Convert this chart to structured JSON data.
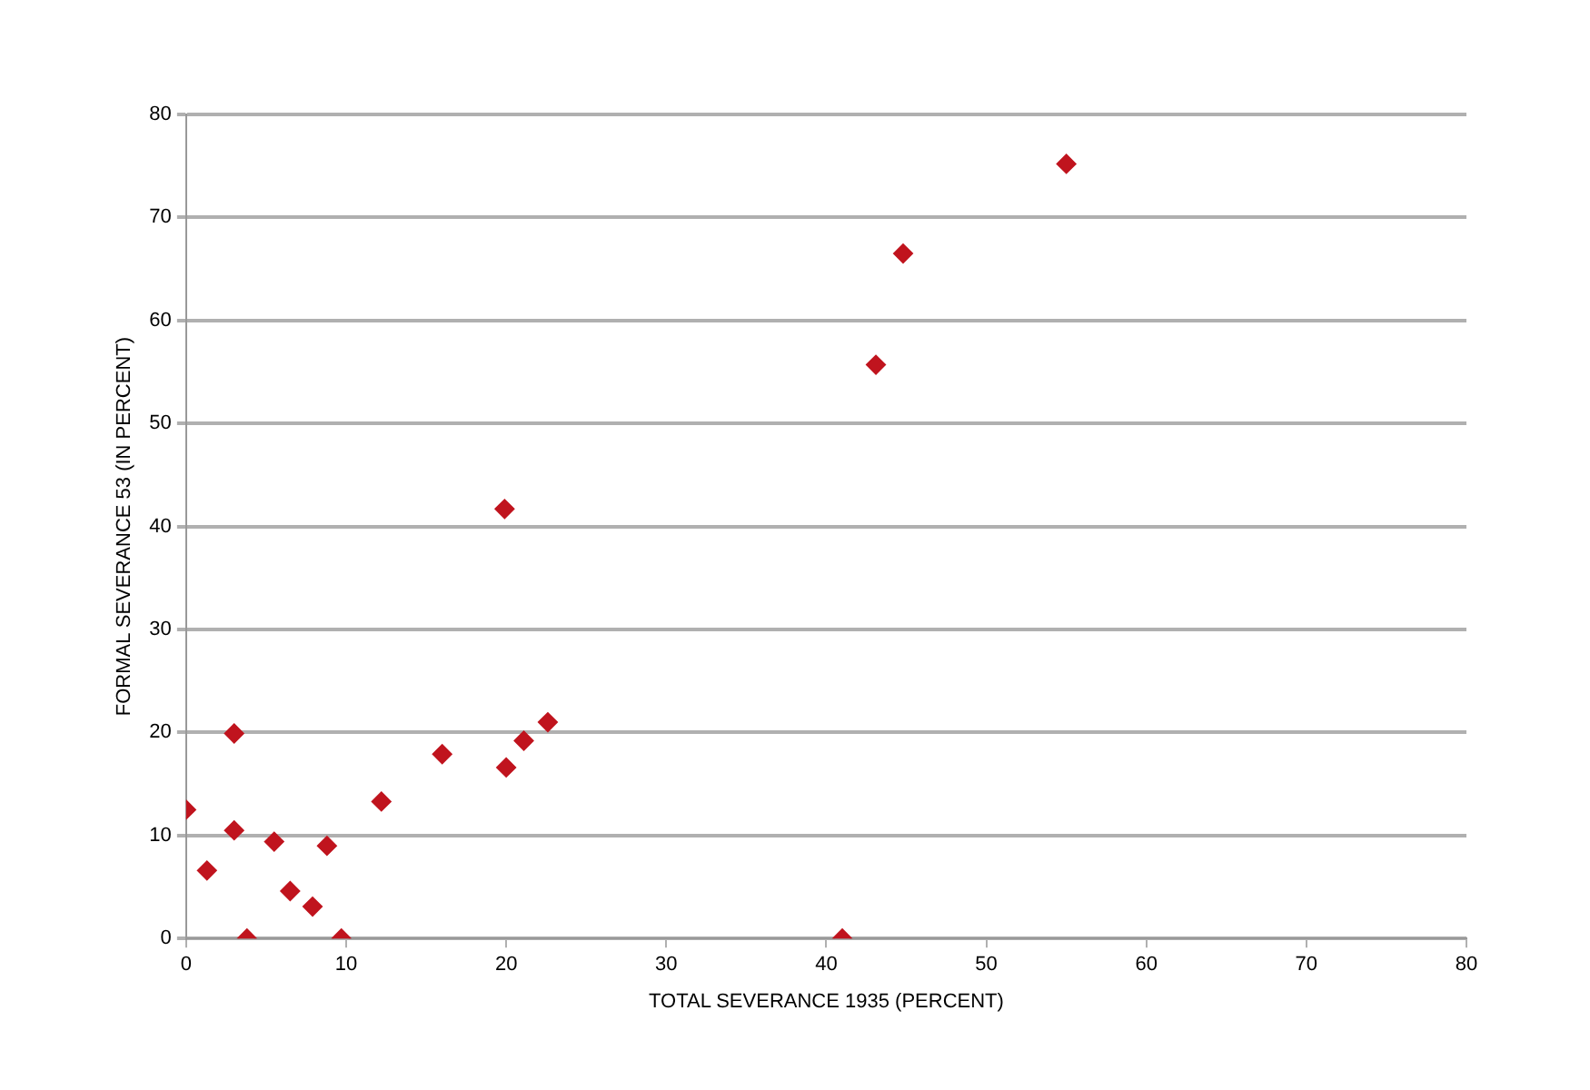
{
  "chart_data": {
    "type": "scatter",
    "xlabel": "TOTAL SEVERANCE 1935 (PERCENT)",
    "ylabel": "FORMAL SEVERANCE 53 (IN PERCENT)",
    "x": [
      0,
      1.3,
      3.0,
      3.0,
      3.8,
      5.5,
      6.5,
      7.9,
      8.8,
      9.7,
      12.2,
      16.0,
      20.0,
      21.1,
      22.6,
      19.9,
      41.0,
      43.1,
      44.8,
      55.0
    ],
    "series": [
      {
        "color": "#c0141e",
        "values": [
          12.5,
          6.6,
          19.9,
          10.5,
          0,
          9.4,
          4.6,
          3.1,
          9.0,
          0,
          13.3,
          17.9,
          16.6,
          19.2,
          21.0,
          41.7,
          0,
          55.7,
          66.5,
          75.2
        ]
      }
    ],
    "xlim": [
      0,
      80
    ],
    "xticks": [
      0,
      10,
      20,
      30,
      40,
      50,
      60,
      70,
      80
    ],
    "ylim": [
      0,
      80
    ],
    "yticks": [
      0,
      10,
      20,
      30,
      40,
      50,
      60,
      70,
      80
    ],
    "grid": "y",
    "legend": false,
    "marker": "diamond"
  }
}
